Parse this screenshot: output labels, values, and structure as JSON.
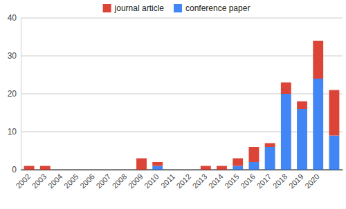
{
  "chart_data": {
    "type": "bar",
    "stacked": true,
    "grid": true,
    "legend": "top",
    "categories": [
      "2002",
      "2003",
      "2004",
      "2005",
      "2006",
      "2007",
      "2008",
      "2009",
      "2010",
      "2011",
      "2012",
      "2013",
      "2014",
      "2015",
      "2016",
      "2017",
      "2018",
      "2019",
      "2020",
      null
    ],
    "series": [
      {
        "name": "journal article",
        "color": "#db4437",
        "values": [
          1,
          1,
          0,
          0,
          0,
          0,
          0,
          3,
          1,
          0,
          0,
          1,
          1,
          2,
          4,
          1,
          3,
          2,
          10,
          12
        ]
      },
      {
        "name": "conference paper",
        "color": "#4285f4",
        "values": [
          0,
          0,
          0,
          0,
          0,
          0,
          0,
          0,
          1,
          0,
          0,
          0,
          0,
          1,
          2,
          6,
          20,
          16,
          24,
          9
        ]
      }
    ],
    "ylim": [
      0,
      40
    ],
    "yticks": [
      0,
      10,
      20,
      30,
      40
    ]
  }
}
